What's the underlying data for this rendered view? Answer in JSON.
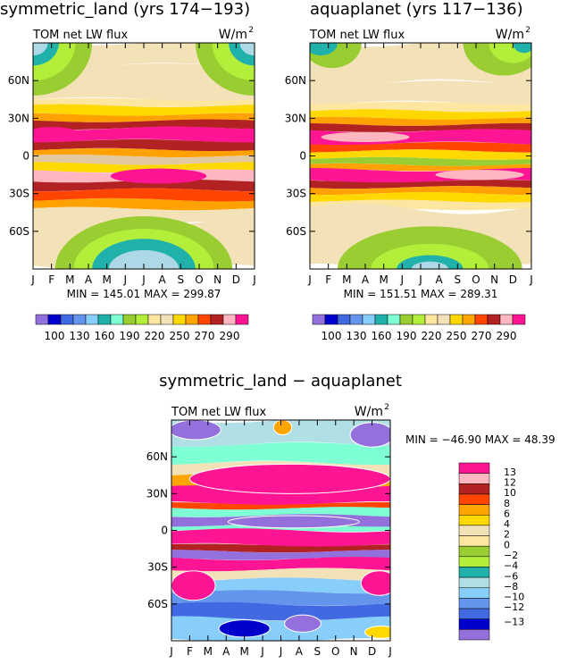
{
  "chart_data": [
    {
      "type": "heatmap",
      "title": "symmetric_land (yrs 174−193)",
      "subtitle": "TOM  net  LW  flux",
      "units": "W/m",
      "units_sup": "2",
      "x_ticks": [
        "J",
        "F",
        "M",
        "A",
        "M",
        "J",
        "J",
        "A",
        "S",
        "O",
        "N",
        "D",
        "J"
      ],
      "y_ticks": [
        "60N",
        "30N",
        "0",
        "30S",
        "60S"
      ],
      "y_tick_values": [
        60,
        30,
        0,
        -30,
        -60
      ],
      "ylim": [
        -90,
        90
      ],
      "stats": "MIN = 145.01  MAX = 299.87",
      "min": 145.01,
      "max": 299.87,
      "colorbar_labels": [
        "100",
        "130",
        "160",
        "190",
        "220",
        "250",
        "270",
        "290"
      ],
      "bands": [
        {
          "lat": [
            90,
            72
          ],
          "color": "#f3e1b8"
        },
        {
          "lat": [
            72,
            60
          ],
          "color": "#f3e1b8"
        },
        {
          "lat": [
            60,
            45
          ],
          "color": "#f3e1b8"
        },
        {
          "lat": [
            45,
            40
          ],
          "color": "#fde6a0"
        },
        {
          "lat": [
            40,
            33
          ],
          "color": "#ffd800"
        },
        {
          "lat": [
            33,
            28
          ],
          "color": "#ffa100"
        },
        {
          "lat": [
            28,
            22
          ],
          "color": "#b22222"
        },
        {
          "lat": [
            22,
            12
          ],
          "color": "#ff1493"
        },
        {
          "lat": [
            12,
            5
          ],
          "color": "#b22222"
        },
        {
          "lat": [
            5,
            0
          ],
          "color": "#ffa100"
        },
        {
          "lat": [
            0,
            -6
          ],
          "color": "#e3c9a0"
        },
        {
          "lat": [
            -6,
            -12
          ],
          "color": "#ffd800"
        },
        {
          "lat": [
            -12,
            -20
          ],
          "color": "#ffb6c1"
        },
        {
          "lat": [
            -20,
            -27
          ],
          "color": "#b22222"
        },
        {
          "lat": [
            -27,
            -35
          ],
          "color": "#ff4500"
        },
        {
          "lat": [
            -35,
            -42
          ],
          "color": "#ffa100"
        },
        {
          "lat": [
            -42,
            -52
          ],
          "color": "#f3e1b8"
        },
        {
          "lat": [
            -52,
            -90
          ],
          "color": "#f3e1b8"
        }
      ],
      "arcs": [
        {
          "side": "top",
          "month_center": 0,
          "radius_months": 3.2,
          "depth_lat": 42,
          "color": "#9acd32"
        },
        {
          "side": "top",
          "month_center": 0,
          "radius_months": 2.3,
          "depth_lat": 30,
          "color": "#b3ee3a"
        },
        {
          "side": "top",
          "month_center": 0,
          "radius_months": 1.4,
          "depth_lat": 18,
          "color": "#20b2aa"
        },
        {
          "side": "top",
          "month_center": 0,
          "radius_months": 0.8,
          "depth_lat": 10,
          "color": "#add8e6"
        },
        {
          "side": "top",
          "month_center": 12,
          "radius_months": 3.2,
          "depth_lat": 42,
          "color": "#9acd32"
        },
        {
          "side": "top",
          "month_center": 12,
          "radius_months": 2.3,
          "depth_lat": 30,
          "color": "#b3ee3a"
        },
        {
          "side": "top",
          "month_center": 12,
          "radius_months": 1.4,
          "depth_lat": 18,
          "color": "#20b2aa"
        },
        {
          "side": "top",
          "month_center": 12,
          "radius_months": 0.8,
          "depth_lat": 10,
          "color": "#add8e6"
        },
        {
          "side": "bottom",
          "month_center": 6,
          "radius_months": 4.8,
          "depth_lat": 42,
          "color": "#9acd32"
        },
        {
          "side": "bottom",
          "month_center": 6,
          "radius_months": 3.8,
          "depth_lat": 32,
          "color": "#b3ee3a"
        },
        {
          "side": "bottom",
          "month_center": 6,
          "radius_months": 2.8,
          "depth_lat": 24,
          "color": "#20b2aa"
        },
        {
          "side": "bottom",
          "month_center": 6,
          "radius_months": 1.9,
          "depth_lat": 15,
          "color": "#add8e6"
        }
      ],
      "blobs": [
        {
          "month": 1.0,
          "lat": 17,
          "rx_months": 1.6,
          "ry_lat": 6,
          "color": "#ff1493"
        },
        {
          "month": 11.6,
          "lat": 17,
          "rx_months": 1.0,
          "ry_lat": 5,
          "color": "#ff1493"
        },
        {
          "month": 6.8,
          "lat": -16,
          "rx_months": 2.6,
          "ry_lat": 6,
          "color": "#ff1493"
        }
      ]
    },
    {
      "type": "heatmap",
      "title": "aquaplanet (yrs 117−136)",
      "subtitle": "TOM  net  LW  flux",
      "units": "W/m",
      "units_sup": "2",
      "x_ticks": [
        "J",
        "F",
        "M",
        "A",
        "M",
        "J",
        "J",
        "A",
        "S",
        "O",
        "N",
        "D",
        "J"
      ],
      "y_ticks": [
        "60N",
        "30N",
        "0",
        "30S",
        "60S"
      ],
      "y_tick_values": [
        60,
        30,
        0,
        -30,
        -60
      ],
      "ylim": [
        -90,
        90
      ],
      "stats": "MIN = 151.51  MAX = 289.31",
      "min": 151.51,
      "max": 289.31,
      "colorbar_labels": [
        "100",
        "130",
        "160",
        "190",
        "220",
        "250",
        "270",
        "290"
      ],
      "bands": [
        {
          "lat": [
            90,
            58
          ],
          "color": "#f3e1b8"
        },
        {
          "lat": [
            58,
            42
          ],
          "color": "#f3e1b8"
        },
        {
          "lat": [
            42,
            36
          ],
          "color": "#fde6a0"
        },
        {
          "lat": [
            36,
            30
          ],
          "color": "#ffd800"
        },
        {
          "lat": [
            30,
            25
          ],
          "color": "#ffa100"
        },
        {
          "lat": [
            25,
            20
          ],
          "color": "#b22222"
        },
        {
          "lat": [
            20,
            10
          ],
          "color": "#ff1493"
        },
        {
          "lat": [
            10,
            4
          ],
          "color": "#ff4500"
        },
        {
          "lat": [
            4,
            -2
          ],
          "color": "#ffd800"
        },
        {
          "lat": [
            -2,
            -7
          ],
          "color": "#9acd32"
        },
        {
          "lat": [
            -7,
            -11
          ],
          "color": "#ffa100"
        },
        {
          "lat": [
            -11,
            -20
          ],
          "color": "#ff1493"
        },
        {
          "lat": [
            -20,
            -25
          ],
          "color": "#b22222"
        },
        {
          "lat": [
            -25,
            -30
          ],
          "color": "#ffa100"
        },
        {
          "lat": [
            -30,
            -36
          ],
          "color": "#ffd800"
        },
        {
          "lat": [
            -36,
            -42
          ],
          "color": "#fde6a0"
        },
        {
          "lat": [
            -42,
            -90
          ],
          "color": "#f3e1b8"
        }
      ],
      "arcs": [
        {
          "side": "top",
          "month_center": 1.2,
          "radius_months": 1.6,
          "depth_lat": 20,
          "color": "#9acd32"
        },
        {
          "side": "top",
          "month_center": 0.6,
          "radius_months": 0.9,
          "depth_lat": 10,
          "color": "#20b2aa"
        },
        {
          "side": "top",
          "month_center": 10.5,
          "radius_months": 2.2,
          "depth_lat": 26,
          "color": "#9acd32"
        },
        {
          "side": "top",
          "month_center": 11.0,
          "radius_months": 1.3,
          "depth_lat": 16,
          "color": "#b3ee3a"
        },
        {
          "side": "top",
          "month_center": 11.6,
          "radius_months": 0.6,
          "depth_lat": 8,
          "color": "#20b2aa"
        },
        {
          "side": "bottom",
          "month_center": 6.5,
          "radius_months": 5.0,
          "depth_lat": 34,
          "color": "#9acd32"
        },
        {
          "side": "bottom",
          "month_center": 6.5,
          "radius_months": 3.2,
          "depth_lat": 20,
          "color": "#b3ee3a"
        },
        {
          "side": "bottom",
          "month_center": 6.5,
          "radius_months": 1.8,
          "depth_lat": 11,
          "color": "#20b2aa"
        },
        {
          "side": "bottom",
          "month_center": 6.5,
          "radius_months": 1.0,
          "depth_lat": 6,
          "color": "#add8e6"
        }
      ],
      "blobs": [
        {
          "month": 3.0,
          "lat": 15,
          "rx_months": 2.4,
          "ry_lat": 4,
          "color": "#ffb6c1"
        },
        {
          "month": 9.2,
          "lat": -15,
          "rx_months": 2.4,
          "ry_lat": 4,
          "color": "#ffb6c1"
        }
      ]
    },
    {
      "type": "heatmap",
      "title": "symmetric_land − aquaplanet",
      "subtitle": "TOM  net  LW  flux",
      "units": "W/m",
      "units_sup": "2",
      "x_ticks": [
        "J",
        "F",
        "M",
        "A",
        "M",
        "J",
        "J",
        "A",
        "S",
        "O",
        "N",
        "D",
        "J"
      ],
      "y_ticks": [
        "60N",
        "30N",
        "0",
        "30S",
        "60S"
      ],
      "y_tick_values": [
        60,
        30,
        0,
        -30,
        -60
      ],
      "ylim": [
        -90,
        90
      ],
      "stats": "MIN = −46.90  MAX =  48.39",
      "min": -46.9,
      "max": 48.39,
      "colorbar_labels": [
        "13",
        "12",
        "10",
        "8",
        "6",
        "4",
        "2",
        "0",
        "−2",
        "−4",
        "−6",
        "−8",
        "−10",
        "−12",
        "−13"
      ],
      "bands": [
        {
          "lat": [
            90,
            70
          ],
          "color": "#b0e0e6"
        },
        {
          "lat": [
            70,
            55
          ],
          "color": "#7fffd4"
        },
        {
          "lat": [
            55,
            45
          ],
          "color": "#f3e1b8"
        },
        {
          "lat": [
            45,
            35
          ],
          "color": "#ffa500"
        },
        {
          "lat": [
            35,
            22
          ],
          "color": "#ff1493"
        },
        {
          "lat": [
            22,
            18
          ],
          "color": "#ff4500"
        },
        {
          "lat": [
            18,
            12
          ],
          "color": "#7fffd4"
        },
        {
          "lat": [
            12,
            4
          ],
          "color": "#9370db"
        },
        {
          "lat": [
            4,
            0
          ],
          "color": "#7fffd4"
        },
        {
          "lat": [
            0,
            -12
          ],
          "color": "#ff1493"
        },
        {
          "lat": [
            -12,
            -17
          ],
          "color": "#b22222"
        },
        {
          "lat": [
            -17,
            -23
          ],
          "color": "#9370db"
        },
        {
          "lat": [
            -23,
            -32
          ],
          "color": "#ff1493"
        },
        {
          "lat": [
            -32,
            -40
          ],
          "color": "#f3e1b8"
        },
        {
          "lat": [
            -40,
            -50
          ],
          "color": "#87cefa"
        },
        {
          "lat": [
            -50,
            -60
          ],
          "color": "#6495ed"
        },
        {
          "lat": [
            -60,
            -72
          ],
          "color": "#4169e1"
        },
        {
          "lat": [
            -72,
            -90
          ],
          "color": "#87cefa"
        }
      ],
      "arcs": [],
      "blobs": [
        {
          "month": 6.5,
          "lat": 42,
          "rx_months": 5.5,
          "ry_lat": 12,
          "color": "#ff1493"
        },
        {
          "month": 1.3,
          "lat": 82,
          "rx_months": 1.4,
          "ry_lat": 8,
          "color": "#9370db"
        },
        {
          "month": 11.0,
          "lat": 78,
          "rx_months": 1.2,
          "ry_lat": 10,
          "color": "#9370db"
        },
        {
          "month": 6.1,
          "lat": 84,
          "rx_months": 0.5,
          "ry_lat": 6,
          "color": "#ffa500"
        },
        {
          "month": 1.2,
          "lat": -45,
          "rx_months": 1.2,
          "ry_lat": 12,
          "color": "#ff1493"
        },
        {
          "month": 11.4,
          "lat": -43,
          "rx_months": 1.0,
          "ry_lat": 10,
          "color": "#ff1493"
        },
        {
          "month": 4.0,
          "lat": -80,
          "rx_months": 1.4,
          "ry_lat": 7,
          "color": "#0000cd"
        },
        {
          "month": 7.2,
          "lat": -76,
          "rx_months": 1.0,
          "ry_lat": 7,
          "color": "#9370db"
        },
        {
          "month": 11.5,
          "lat": -83,
          "rx_months": 0.9,
          "ry_lat": 5,
          "color": "#ffd800"
        },
        {
          "month": 6.7,
          "lat": 7,
          "rx_months": 3.6,
          "ry_lat": 5,
          "color": "#9370db"
        }
      ]
    }
  ],
  "colorbar_colors_top": [
    "#9370db",
    "#0000cd",
    "#4169e1",
    "#6495ed",
    "#87cefa",
    "#20b2aa",
    "#7fffd4",
    "#9acd32",
    "#b3ee3a",
    "#fde6a0",
    "#f3e1b8",
    "#ffd800",
    "#ffa500",
    "#ff4500",
    "#b22222",
    "#ffb6c1",
    "#ff1493"
  ],
  "colorbar_colors_diff": [
    "#ff1493",
    "#ffb6c1",
    "#b22222",
    "#ff4500",
    "#ffa500",
    "#ffd800",
    "#f3e1b8",
    "#fde6a0",
    "#9acd32",
    "#b3ee3a",
    "#20b2aa",
    "#b0e0e6",
    "#87cefa",
    "#6495ed",
    "#4169e1",
    "#0000cd",
    "#9370db"
  ]
}
